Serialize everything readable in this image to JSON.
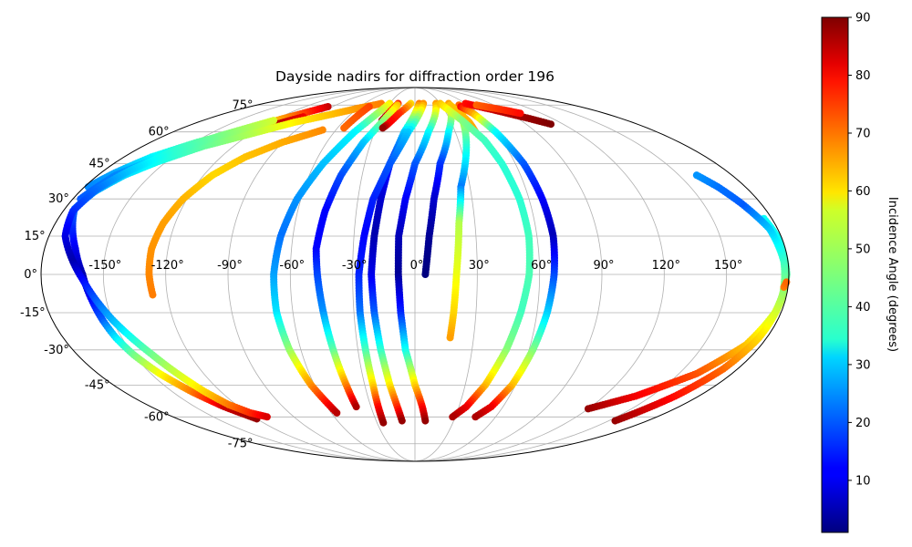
{
  "chart_data": {
    "type": "scatter",
    "projection": "mollweide",
    "title": "Dayside nadirs for diffraction order 196",
    "xlabel": "",
    "ylabel": "",
    "grid": true,
    "longitude_tick_labels": [
      "-150°",
      "-120°",
      "-90°",
      "-60°",
      "-30°",
      "0°",
      "30°",
      "60°",
      "90°",
      "120°",
      "150°"
    ],
    "latitude_tick_labels": [
      "-75°",
      "-60°",
      "-45°",
      "-30°",
      "-15°",
      "0°",
      "15°",
      "30°",
      "45°",
      "60°",
      "75°"
    ],
    "colorbar": {
      "label": "Incidence Angle (degrees)",
      "colormap": "jet",
      "range": [
        1,
        90
      ],
      "tick_labels": [
        "10",
        "20",
        "30",
        "40",
        "50",
        "60",
        "70",
        "80",
        "90"
      ]
    },
    "x_unit": "longitude (degrees)",
    "y_unit": "latitude (degrees)",
    "value_unit": "incidence angle (degrees)",
    "series": [
      {
        "points": [
          [
            -95,
            74,
            84
          ],
          [
            -115,
            67,
            66
          ],
          [
            -130,
            61,
            52
          ],
          [
            -148,
            55,
            42
          ],
          [
            -163,
            48,
            34
          ],
          [
            -172,
            41,
            27
          ],
          [
            -178,
            35,
            24
          ]
        ]
      },
      {
        "points": [
          [
            -120,
            64,
            53
          ],
          [
            -140,
            56,
            40
          ],
          [
            -157,
            48,
            31
          ],
          [
            -170,
            40,
            24
          ],
          [
            -176,
            30,
            20
          ]
        ]
      },
      {
        "points": [
          [
            -100,
            68,
            80
          ],
          [
            -112,
            64,
            85
          ]
        ]
      },
      {
        "points": [
          [
            -40,
            76,
            68
          ],
          [
            -60,
            73,
            66
          ],
          [
            -80,
            69,
            62
          ],
          [
            -100,
            65,
            58
          ],
          [
            -120,
            59,
            50
          ],
          [
            -140,
            53,
            43
          ],
          [
            -155,
            46,
            36
          ],
          [
            -165,
            40,
            31
          ],
          [
            -172,
            33,
            27
          ],
          [
            -175,
            26,
            22
          ],
          [
            -170,
            18,
            16
          ],
          [
            -165,
            10,
            11
          ],
          [
            -160,
            0,
            5
          ],
          [
            -157,
            -10,
            12
          ],
          [
            -155,
            -18,
            20
          ],
          [
            -153,
            -25,
            32
          ],
          [
            -150,
            -32,
            44
          ],
          [
            -145,
            -40,
            56
          ],
          [
            -138,
            -48,
            68
          ],
          [
            -130,
            -55,
            83
          ],
          [
            -120,
            -61,
            88
          ]
        ]
      },
      {
        "points": [
          [
            -120,
            66,
            53
          ],
          [
            -140,
            58,
            45
          ],
          [
            -155,
            50,
            38
          ],
          [
            -165,
            42,
            30
          ],
          [
            -172,
            34,
            22
          ],
          [
            -175,
            25,
            16
          ],
          [
            -172,
            15,
            10
          ],
          [
            -165,
            5,
            5
          ],
          [
            -160,
            -2,
            12
          ],
          [
            -155,
            -10,
            20
          ],
          [
            -150,
            -18,
            28
          ],
          [
            -145,
            -25,
            36
          ],
          [
            -140,
            -32,
            44
          ],
          [
            -135,
            -40,
            52
          ],
          [
            -130,
            -48,
            60
          ],
          [
            -125,
            -54,
            68
          ],
          [
            -118,
            -58,
            75
          ],
          [
            -110,
            -60,
            82
          ]
        ]
      },
      {
        "points": [
          [
            -70,
            61,
            67
          ],
          [
            -90,
            55,
            64
          ],
          [
            -105,
            48,
            62
          ],
          [
            -115,
            40,
            60
          ],
          [
            -122,
            30,
            63
          ],
          [
            -126,
            20,
            65
          ],
          [
            -128,
            10,
            66
          ],
          [
            -128,
            0,
            67
          ],
          [
            -127,
            -8,
            68
          ]
        ]
      },
      {
        "points": [
          [
            -50,
            74,
            73
          ],
          [
            -55,
            62,
            70
          ]
        ]
      },
      {
        "points": [
          [
            -30,
            76,
            58
          ],
          [
            -45,
            60,
            34
          ],
          [
            -55,
            45,
            29
          ],
          [
            -62,
            30,
            25
          ],
          [
            -66,
            15,
            22
          ],
          [
            -68,
            0,
            26
          ],
          [
            -68,
            -15,
            32
          ],
          [
            -66,
            -30,
            47
          ],
          [
            -62,
            -45,
            66
          ],
          [
            -56,
            -58,
            85
          ]
        ]
      },
      {
        "points": [
          [
            -20,
            76,
            75
          ],
          [
            -25,
            70,
            80
          ],
          [
            -28,
            66,
            88
          ]
        ]
      },
      {
        "points": [
          [
            -20,
            75,
            62
          ],
          [
            -35,
            55,
            30
          ],
          [
            -42,
            40,
            19
          ],
          [
            -46,
            25,
            12
          ],
          [
            -48,
            10,
            12
          ],
          [
            -47,
            0,
            18
          ],
          [
            -45,
            -15,
            25
          ],
          [
            -43,
            -30,
            42
          ],
          [
            -41,
            -45,
            67
          ],
          [
            -40,
            -55,
            86
          ]
        ]
      },
      {
        "points": [
          [
            -5,
            76,
            60
          ],
          [
            -15,
            70,
            75
          ],
          [
            -22,
            64,
            80
          ],
          [
            -25,
            62,
            88
          ]
        ]
      },
      {
        "points": [
          [
            5,
            76,
            68
          ],
          [
            -8,
            60,
            30
          ],
          [
            -15,
            45,
            15
          ],
          [
            -18,
            30,
            8
          ],
          [
            -20,
            15,
            5
          ],
          [
            -21,
            0,
            10
          ],
          [
            -20,
            -15,
            20
          ],
          [
            -18,
            -30,
            38
          ],
          [
            -15,
            -45,
            58
          ],
          [
            -12,
            -55,
            75
          ],
          [
            -10,
            -62,
            88
          ]
        ]
      },
      {
        "points": [
          [
            10,
            76,
            66
          ],
          [
            -5,
            60,
            30
          ],
          [
            -15,
            45,
            20
          ],
          [
            -22,
            30,
            15
          ],
          [
            -25,
            15,
            12
          ],
          [
            -27,
            0,
            15
          ],
          [
            -27,
            -15,
            22
          ],
          [
            -26,
            -30,
            40
          ],
          [
            -25,
            -45,
            60
          ],
          [
            -25,
            -55,
            78
          ],
          [
            -25,
            -63,
            88
          ]
        ]
      },
      {
        "points": [
          [
            25,
            76,
            65
          ],
          [
            10,
            60,
            35
          ],
          [
            0,
            45,
            20
          ],
          [
            -5,
            30,
            12
          ],
          [
            -8,
            15,
            6
          ],
          [
            -8,
            0,
            3
          ],
          [
            -7,
            -15,
            15
          ],
          [
            -5,
            -30,
            35
          ],
          [
            0,
            -45,
            60
          ],
          [
            5,
            -55,
            78
          ],
          [
            8,
            -62,
            88
          ]
        ]
      },
      {
        "points": [
          [
            40,
            76,
            65
          ],
          [
            25,
            60,
            35
          ],
          [
            15,
            45,
            17
          ],
          [
            10,
            30,
            8
          ],
          [
            7,
            15,
            3
          ],
          [
            5,
            0,
            1
          ]
        ]
      },
      {
        "points": [
          [
            50,
            75,
            70
          ],
          [
            40,
            65,
            50
          ],
          [
            35,
            55,
            40
          ],
          [
            30,
            45,
            32
          ],
          [
            25,
            35,
            23
          ],
          [
            22,
            20,
            50
          ],
          [
            20,
            0,
            55
          ],
          [
            19,
            -15,
            60
          ],
          [
            18,
            -25,
            65
          ]
        ]
      },
      {
        "points": [
          [
            40,
            75,
            62
          ],
          [
            45,
            65,
            63
          ],
          [
            45,
            60,
            66
          ]
        ]
      },
      {
        "points": [
          [
            30,
            76,
            62
          ],
          [
            40,
            66,
            46
          ],
          [
            48,
            56,
            40
          ],
          [
            52,
            45,
            38
          ],
          [
            55,
            30,
            38
          ],
          [
            56,
            15,
            40
          ],
          [
            55,
            0,
            41
          ],
          [
            52,
            -15,
            40
          ],
          [
            48,
            -30,
            46
          ],
          [
            42,
            -45,
            62
          ],
          [
            35,
            -55,
            80
          ],
          [
            28,
            -60,
            86
          ]
        ]
      },
      {
        "points": [
          [
            50,
            74,
            78
          ],
          [
            55,
            70,
            65
          ],
          [
            60,
            60,
            35
          ],
          [
            65,
            45,
            20
          ],
          [
            67,
            30,
            12
          ],
          [
            68,
            15,
            6
          ],
          [
            67,
            0,
            18
          ],
          [
            65,
            -15,
            30
          ],
          [
            62,
            -30,
            45
          ],
          [
            58,
            -45,
            62
          ],
          [
            52,
            -55,
            80
          ],
          [
            45,
            -60,
            86
          ]
        ]
      },
      {
        "points": [
          [
            60,
            76,
            78
          ],
          [
            80,
            72,
            84
          ],
          [
            100,
            67,
            88
          ],
          [
            110,
            64,
            90
          ]
        ]
      },
      {
        "points": [
          [
            70,
            75,
            70
          ],
          [
            90,
            72,
            75
          ],
          [
            100,
            70,
            78
          ]
        ]
      },
      {
        "points": [
          [
            120,
            -56,
            88
          ],
          [
            140,
            -50,
            80
          ],
          [
            160,
            -40,
            72
          ],
          [
            172,
            -28,
            62
          ],
          [
            177,
            -15,
            52
          ],
          [
            179,
            0,
            42
          ],
          [
            178,
            15,
            35
          ],
          [
            176,
            22,
            35
          ]
        ]
      },
      {
        "points": [
          [
            155,
            -62,
            88
          ],
          [
            165,
            -50,
            78
          ],
          [
            172,
            -38,
            70
          ],
          [
            176,
            -25,
            60
          ],
          [
            178,
            -10,
            50
          ],
          [
            178,
            5,
            40
          ],
          [
            176,
            18,
            30
          ],
          [
            170,
            28,
            20
          ],
          [
            165,
            35,
            22
          ],
          [
            160,
            40,
            25
          ]
        ]
      },
      {
        "points": [
          [
            178,
            -5,
            68
          ],
          [
            179,
            -3,
            70
          ]
        ]
      }
    ]
  }
}
